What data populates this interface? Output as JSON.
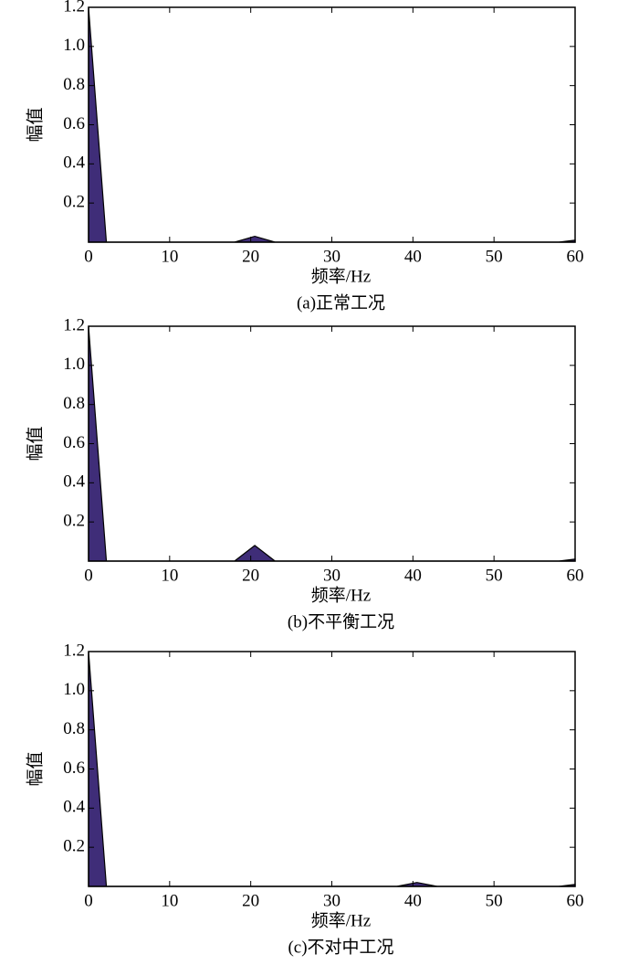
{
  "chart_data": [
    {
      "type": "area",
      "title": "(a)正常工况",
      "xlabel": "频率/Hz",
      "ylabel": "幅值",
      "x": [
        0,
        2.2,
        18,
        20.5,
        23,
        58,
        60
      ],
      "series": [
        {
          "color": "#3f2d78",
          "values": [
            1.2,
            0,
            0,
            0.03,
            0,
            0,
            0.01
          ]
        }
      ],
      "xlim": [
        0,
        60
      ],
      "ylim": [
        0,
        1.2
      ],
      "xticks": [
        0,
        10,
        20,
        30,
        40,
        50,
        60
      ],
      "yticks": [
        0.2,
        0.4,
        0.6,
        0.8,
        {
          "value": 1,
          "label": "1.0"
        },
        1.2
      ]
    },
    {
      "type": "area",
      "title": "(b)不平衡工况",
      "xlabel": "频率/Hz",
      "ylabel": "幅值",
      "x": [
        0,
        2.2,
        18,
        20.5,
        23,
        58,
        60
      ],
      "series": [
        {
          "color": "#3f2d78",
          "values": [
            1.2,
            0,
            0,
            0.08,
            0,
            0,
            0.01
          ]
        }
      ],
      "xlim": [
        0,
        60
      ],
      "ylim": [
        0,
        1.2
      ],
      "xticks": [
        0,
        10,
        20,
        30,
        40,
        50,
        60
      ],
      "yticks": [
        0.2,
        0.4,
        0.6,
        0.8,
        {
          "value": 1,
          "label": "1.0"
        },
        1.2
      ]
    },
    {
      "type": "area",
      "title": "(c)不对中工况",
      "xlabel": "频率/Hz",
      "ylabel": "幅值",
      "x": [
        0,
        2.2,
        38,
        40.5,
        43,
        58,
        60
      ],
      "series": [
        {
          "color": "#3f2d78",
          "values": [
            1.2,
            0,
            0,
            0.02,
            0,
            0,
            0.01
          ]
        }
      ],
      "xlim": [
        0,
        60
      ],
      "ylim": [
        0,
        1.2
      ],
      "xticks": [
        0,
        10,
        20,
        30,
        40,
        50,
        60
      ],
      "yticks": [
        0.2,
        0.4,
        0.6,
        0.8,
        {
          "value": 1,
          "label": "1.0"
        },
        1.2
      ]
    }
  ]
}
